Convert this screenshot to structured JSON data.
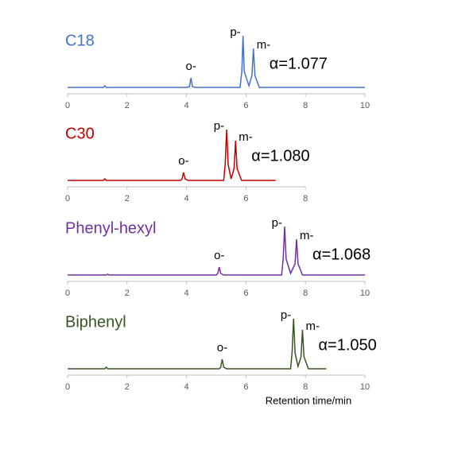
{
  "chart_data": [
    {
      "type": "line",
      "title": "C18",
      "annotation": "α=1.077",
      "x": [
        0,
        1.2,
        1.25,
        1.3,
        4.0,
        4.1,
        4.15,
        4.2,
        4.3,
        5.8,
        5.86,
        5.9,
        5.94,
        6.1,
        6.2,
        6.25,
        6.3,
        6.45,
        10
      ],
      "series": [
        {
          "color": "#4472c4",
          "values": [
            0,
            0,
            2,
            0,
            0,
            1,
            12,
            1,
            0,
            0,
            20,
            65,
            20,
            2,
            15,
            49,
            15,
            0,
            0
          ]
        }
      ],
      "peak_labels": [
        {
          "text": "o-",
          "x": 4.15
        },
        {
          "text": "p-",
          "x": 5.9
        },
        {
          "text": "m-",
          "x": 6.25
        }
      ],
      "xlim": [
        0,
        10
      ],
      "xticks": [
        0,
        2,
        4,
        6,
        8,
        10
      ],
      "ylim": [
        0,
        70
      ]
    },
    {
      "type": "line",
      "title": "C30",
      "annotation": "α=1.080",
      "x": [
        0,
        1.2,
        1.25,
        1.3,
        3.8,
        3.85,
        3.9,
        3.95,
        4.05,
        5.25,
        5.3,
        5.35,
        5.4,
        5.5,
        5.6,
        5.65,
        5.7,
        5.85,
        7
      ],
      "series": [
        {
          "color": "#c00000",
          "values": [
            0,
            0,
            2,
            0,
            0,
            2,
            10,
            2,
            0,
            0,
            20,
            64,
            20,
            2,
            15,
            50,
            15,
            0,
            0
          ]
        }
      ],
      "peak_labels": [
        {
          "text": "o-",
          "x": 3.9
        },
        {
          "text": "p-",
          "x": 5.35
        },
        {
          "text": "m-",
          "x": 5.65
        }
      ],
      "xlim": [
        0,
        8
      ],
      "xticks": [
        0,
        2,
        4,
        6,
        8
      ],
      "ylim": [
        0,
        70
      ]
    },
    {
      "type": "line",
      "title": "Phenyl-hexyl",
      "annotation": "α=1.068",
      "x": [
        0,
        1.3,
        1.35,
        1.4,
        5.0,
        5.05,
        5.1,
        5.15,
        5.25,
        7.2,
        7.25,
        7.3,
        7.35,
        7.5,
        7.65,
        7.7,
        7.75,
        7.9,
        10
      ],
      "series": [
        {
          "color": "#7030a0",
          "values": [
            0,
            0,
            1,
            0,
            0,
            2,
            10,
            2,
            0,
            0,
            20,
            61,
            20,
            2,
            14,
            45,
            14,
            0,
            0
          ]
        }
      ],
      "peak_labels": [
        {
          "text": "o-",
          "x": 5.1
        },
        {
          "text": "p-",
          "x": 7.3
        },
        {
          "text": "m-",
          "x": 7.7
        }
      ],
      "xlim": [
        0,
        10
      ],
      "xticks": [
        0,
        2,
        4,
        6,
        8,
        10
      ],
      "ylim": [
        0,
        70
      ]
    },
    {
      "type": "line",
      "title": "Biphenyl",
      "annotation": "α=1.050",
      "xlabel": "Retention time/min",
      "x": [
        0,
        1.25,
        1.3,
        1.35,
        5.1,
        5.15,
        5.2,
        5.25,
        5.35,
        7.5,
        7.55,
        7.6,
        7.65,
        7.75,
        7.85,
        7.9,
        7.95,
        8.1,
        8.7
      ],
      "series": [
        {
          "color": "#375623",
          "values": [
            0,
            0,
            2,
            0,
            0,
            2,
            12,
            2,
            0,
            0,
            20,
            63,
            20,
            3,
            15,
            49,
            15,
            0,
            0
          ]
        }
      ],
      "peak_labels": [
        {
          "text": "o-",
          "x": 5.2
        },
        {
          "text": "p-",
          "x": 7.6
        },
        {
          "text": "m-",
          "x": 7.9
        }
      ],
      "xlim": [
        0,
        10
      ],
      "xticks": [
        0,
        2,
        4,
        6,
        8,
        10
      ],
      "ylim": [
        0,
        70
      ]
    }
  ]
}
